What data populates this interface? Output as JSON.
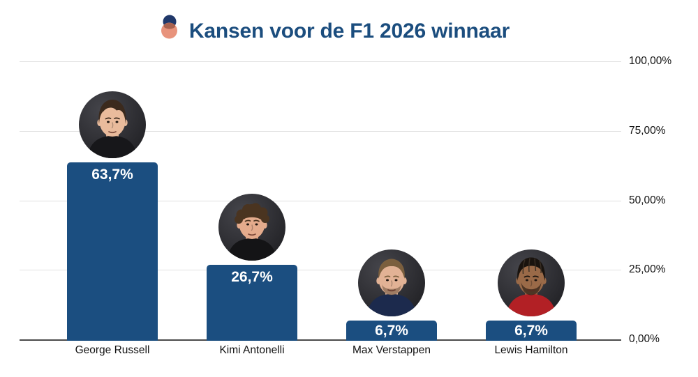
{
  "title": {
    "text": "Kansen voor de F1 2026 winnaar"
  },
  "logo": {
    "name": "two-circles-logo",
    "top_circle_color": "#20386a",
    "bottom_circle_color": "#e8937c",
    "overlap_color": "#a9624f"
  },
  "chart_data": {
    "type": "bar",
    "title": "Kansen voor de F1 2026 winnaar",
    "categories": [
      "George Russell",
      "Kimi Antonelli",
      "Max Verstappen",
      "Lewis Hamilton"
    ],
    "values": [
      63.7,
      26.7,
      6.7,
      6.7
    ],
    "value_labels": [
      "63,7%",
      "26,7%",
      "6,7%",
      "6,7%"
    ],
    "y_ticks": [
      "100,00%",
      "75,00%",
      "50,00%",
      "25,00%",
      "0,00%"
    ],
    "ylim": [
      0,
      100
    ],
    "xlabel": "",
    "ylabel": "",
    "grid": true,
    "legend": "none",
    "y_axis_side": "right",
    "bar_color": "#1b4e80"
  },
  "colors": {
    "title": "#1b4d7e",
    "bar": "#1b4e80",
    "value_label": "#ffffff",
    "gridline": "#e0e0e0",
    "baseline": "#4a4a4a",
    "axis_text": "#111111",
    "background": "#ffffff"
  },
  "drivers": [
    {
      "name": "George Russell",
      "value_label": "63,7%",
      "avatar": {
        "style": "wavy",
        "skin": "#e9bb9c",
        "hair": "#3b2a1d",
        "shirt": "#17171a"
      }
    },
    {
      "name": "Kimi Antonelli",
      "value_label": "26,7%",
      "avatar": {
        "style": "curly",
        "skin": "#e4ab8c",
        "hair": "#4a3420",
        "shirt": "#141416"
      }
    },
    {
      "name": "Max Verstappen",
      "value_label": "6,7%",
      "avatar": {
        "style": "short",
        "skin": "#e2b295",
        "hair": "#7b5f3e",
        "shirt": "#1c2a4d"
      }
    },
    {
      "name": "Lewis Hamilton",
      "value_label": "6,7%",
      "avatar": {
        "style": "braids",
        "skin": "#9a6a48",
        "hair": "#19130e",
        "shirt": "#b22025"
      }
    }
  ]
}
